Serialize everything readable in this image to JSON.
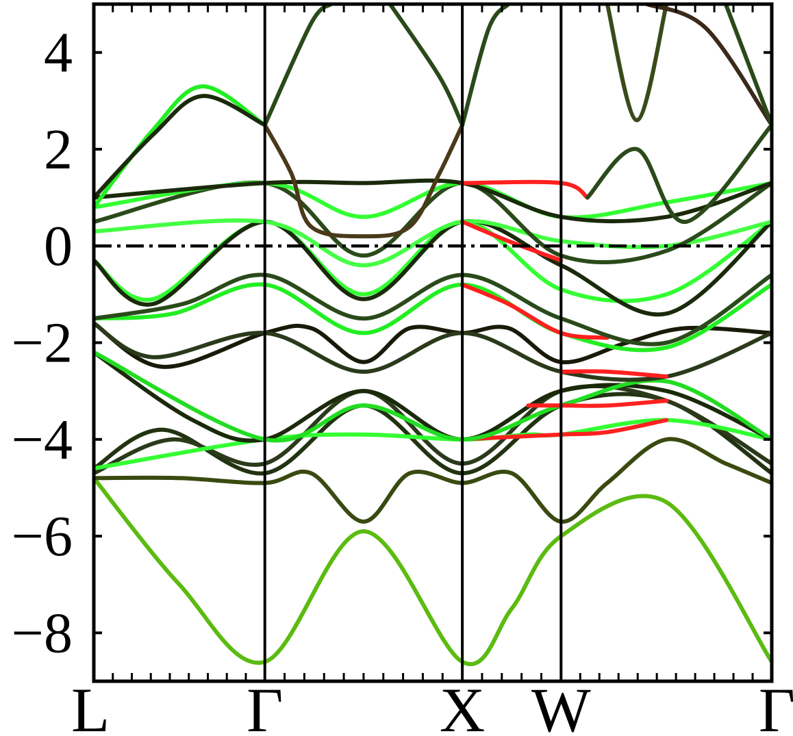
{
  "chart_data": {
    "type": "line",
    "title": "",
    "xlabel": "",
    "ylabel": "",
    "ylim": [
      -9,
      5
    ],
    "yticks": [
      4,
      2,
      0,
      -2,
      -4,
      -6,
      -8
    ],
    "ytick_labels": [
      "4",
      "2",
      "0",
      "−2",
      "−4",
      "−6",
      "−8"
    ],
    "kpoint_labels": [
      "L",
      "Γ",
      "X",
      "W",
      "Γ"
    ],
    "kpoint_positions": [
      0,
      0.866,
      1.866,
      2.366,
      3.433
    ],
    "fermi_level": 0,
    "grid": false,
    "colors": {
      "frame": "#000000",
      "fermi_line": "#000000",
      "low_weight": "#1a1a0a",
      "green_weight": "#22ee22",
      "red_weight": "#ff1a1a",
      "olive_weight": "#4a8a10"
    },
    "series": [
      {
        "color": "#5bbb10",
        "x": [
          0,
          0.433,
          0.866,
          1.366,
          1.866,
          2.116,
          2.366,
          2.9,
          3.433
        ],
        "y": [
          -4.8,
          -7.0,
          -8.6,
          -5.9,
          -8.6,
          -7.5,
          -6.0,
          -5.3,
          -8.6
        ]
      },
      {
        "color": "#3a4a10",
        "x": [
          0,
          0.433,
          0.866,
          1.1,
          1.366,
          1.6,
          1.866,
          2.116,
          2.366,
          2.6,
          2.9,
          3.2,
          3.433
        ],
        "y": [
          -4.8,
          -4.8,
          -4.9,
          -4.7,
          -5.7,
          -4.7,
          -4.9,
          -4.7,
          -5.7,
          -4.9,
          -4.0,
          -4.5,
          -4.9
        ]
      },
      {
        "color": "#223311",
        "x": [
          0,
          0.35,
          0.866,
          1.366,
          1.866,
          2.366,
          2.9,
          3.433
        ],
        "y": [
          -4.6,
          -3.8,
          -4.7,
          -3.3,
          -4.7,
          -3.3,
          -3.2,
          -4.7
        ]
      },
      {
        "color": "#2a3a1a",
        "x": [
          0,
          0.4,
          0.866,
          1.366,
          1.866,
          2.366,
          2.9,
          3.433
        ],
        "y": [
          -4.7,
          -4.0,
          -4.5,
          -3.0,
          -4.5,
          -3.0,
          -3.2,
          -4.5
        ]
      },
      {
        "color": "#33ff33",
        "x": [
          0,
          0.866,
          1.366,
          1.866,
          2.2,
          2.366,
          2.9,
          3.433
        ],
        "y": [
          -4.6,
          -4.0,
          -3.9,
          -4.0,
          -3.9,
          -3.9,
          -3.6,
          -4.0
        ]
      },
      {
        "color": "#ff2020",
        "x": [
          1.866,
          2.1,
          2.366,
          2.6,
          2.9
        ],
        "y": [
          -4.0,
          -3.95,
          -3.9,
          -3.85,
          -3.6
        ]
      },
      {
        "color": "#1a2a0a",
        "x": [
          0,
          0.5,
          0.866,
          1.366,
          1.866,
          2.366,
          2.9,
          3.433
        ],
        "y": [
          -2.2,
          -3.6,
          -4.0,
          -3.0,
          -4.0,
          -3.0,
          -3.0,
          -4.0
        ]
      },
      {
        "color": "#22dd22",
        "x": [
          0,
          0.866,
          1.366,
          1.866,
          2.366,
          2.9,
          3.433
        ],
        "y": [
          -2.2,
          -4.0,
          -3.3,
          -4.0,
          -3.3,
          -2.8,
          -4.0
        ]
      },
      {
        "color": "#ff2020",
        "x": [
          2.2,
          2.366,
          2.6,
          2.9
        ],
        "y": [
          -3.3,
          -3.3,
          -3.3,
          -3.2
        ]
      },
      {
        "color": "#1a1a0a",
        "x": [
          0,
          0.35,
          0.866,
          1.1,
          1.366,
          1.6,
          1.866,
          2.1,
          2.366,
          2.7,
          3.0,
          3.433
        ],
        "y": [
          -1.6,
          -2.5,
          -1.8,
          -1.7,
          -2.4,
          -1.7,
          -1.8,
          -1.7,
          -2.4,
          -2.0,
          -1.7,
          -1.8
        ]
      },
      {
        "color": "#2a3a1a",
        "x": [
          0,
          0.3,
          0.866,
          1.366,
          1.866,
          2.366,
          2.9,
          3.433
        ],
        "y": [
          -1.6,
          -2.3,
          -1.8,
          -2.6,
          -1.8,
          -2.6,
          -2.7,
          -1.8
        ]
      },
      {
        "color": "#ff2020",
        "x": [
          2.366,
          2.6,
          2.9
        ],
        "y": [
          -2.6,
          -2.6,
          -2.7
        ]
      },
      {
        "color": "#22ee22",
        "x": [
          0,
          0.4,
          0.866,
          1.366,
          1.866,
          2.366,
          2.9,
          3.433
        ],
        "y": [
          -1.5,
          -1.4,
          -0.8,
          -1.8,
          -0.8,
          -1.8,
          -2.1,
          -0.8
        ]
      },
      {
        "color": "#ff2020",
        "x": [
          1.866,
          2.1,
          2.366,
          2.6
        ],
        "y": [
          -0.8,
          -1.2,
          -1.8,
          -1.9
        ]
      },
      {
        "color": "#2a4a1a",
        "x": [
          0,
          0.45,
          0.866,
          1.366,
          1.866,
          2.366,
          2.9,
          3.433
        ],
        "y": [
          -1.5,
          -1.2,
          -0.6,
          -1.5,
          -0.6,
          -1.5,
          -2.0,
          -0.6
        ]
      },
      {
        "color": "#33ff33",
        "x": [
          0,
          0.3,
          0.866,
          1.366,
          1.866,
          2.366,
          2.9,
          3.433
        ],
        "y": [
          -0.3,
          -1.1,
          0.5,
          -1.0,
          0.5,
          -0.9,
          -1.0,
          0.5
        ]
      },
      {
        "color": "#1a2a0a",
        "x": [
          0,
          0.3,
          0.866,
          1.366,
          1.866,
          2.366,
          2.9,
          3.433
        ],
        "y": [
          -0.3,
          -1.2,
          0.5,
          -1.1,
          0.5,
          -0.4,
          -1.4,
          0.5
        ]
      },
      {
        "color": "#44ff44",
        "x": [
          0,
          0.866,
          1.366,
          1.866,
          2.366,
          2.9,
          3.433
        ],
        "y": [
          0.3,
          0.5,
          -0.4,
          0.5,
          0.1,
          0.0,
          0.5
        ]
      },
      {
        "color": "#ff2020",
        "x": [
          1.866,
          2.1,
          2.366
        ],
        "y": [
          0.5,
          0.1,
          -0.3
        ]
      },
      {
        "color": "#2a4a1a",
        "x": [
          0,
          0.866,
          1.366,
          1.866,
          2.366,
          2.9,
          3.433
        ],
        "y": [
          0.5,
          1.3,
          -0.2,
          1.3,
          -0.2,
          -0.1,
          1.3
        ]
      },
      {
        "color": "#33ff33",
        "x": [
          0,
          0.866,
          1.366,
          1.866,
          2.366,
          2.9,
          3.433
        ],
        "y": [
          0.8,
          1.3,
          0.6,
          1.3,
          0.6,
          0.9,
          1.3
        ]
      },
      {
        "color": "#1a2a0a",
        "x": [
          0,
          0.866,
          1.366,
          1.866,
          2.366,
          2.9,
          3.433
        ],
        "y": [
          1.0,
          1.3,
          1.3,
          1.3,
          0.6,
          0.6,
          1.3
        ]
      },
      {
        "color": "#ff2020",
        "x": [
          1.866,
          2.366,
          2.5
        ],
        "y": [
          1.3,
          1.3,
          1.0
        ]
      },
      {
        "color": "#22ee22",
        "x": [
          0,
          0.3,
          0.55,
          0.866
        ],
        "y": [
          0.8,
          2.4,
          3.3,
          2.5
        ]
      },
      {
        "color": "#1a2a0a",
        "x": [
          0,
          0.3,
          0.55,
          0.866
        ],
        "y": [
          1.0,
          2.3,
          3.1,
          2.5
        ]
      },
      {
        "color": "#2a4a1a",
        "x": [
          0.866,
          1.1,
          1.2
        ],
        "y": [
          2.5,
          4.6,
          5.0
        ]
      },
      {
        "color": "#4a3a1a",
        "x": [
          0.866,
          1.0,
          1.1,
          1.366,
          1.6,
          1.75,
          1.866
        ],
        "y": [
          2.5,
          1.5,
          0.4,
          0.2,
          0.4,
          1.5,
          2.5
        ]
      },
      {
        "color": "#2a4a1a",
        "x": [
          1.5,
          1.75,
          1.866
        ],
        "y": [
          5.0,
          3.5,
          2.5
        ]
      },
      {
        "color": "#2a4a1a",
        "x": [
          1.866,
          2.0,
          2.1
        ],
        "y": [
          2.5,
          4.5,
          5.0
        ]
      },
      {
        "color": "#3a4a1a",
        "x": [
          2.6,
          2.75,
          2.9
        ],
        "y": [
          5.0,
          2.6,
          5.0
        ]
      },
      {
        "color": "#3a2a1a",
        "x": [
          2.8,
          3.1,
          3.433
        ],
        "y": [
          5.0,
          4.5,
          2.5
        ]
      },
      {
        "color": "#2a4a1a",
        "x": [
          3.2,
          3.433
        ],
        "y": [
          5.0,
          2.5
        ]
      },
      {
        "color": "#2a4a1a",
        "x": [
          2.5,
          2.75,
          3.0,
          3.433
        ],
        "y": [
          1.0,
          2.0,
          0.5,
          2.5
        ]
      }
    ]
  }
}
